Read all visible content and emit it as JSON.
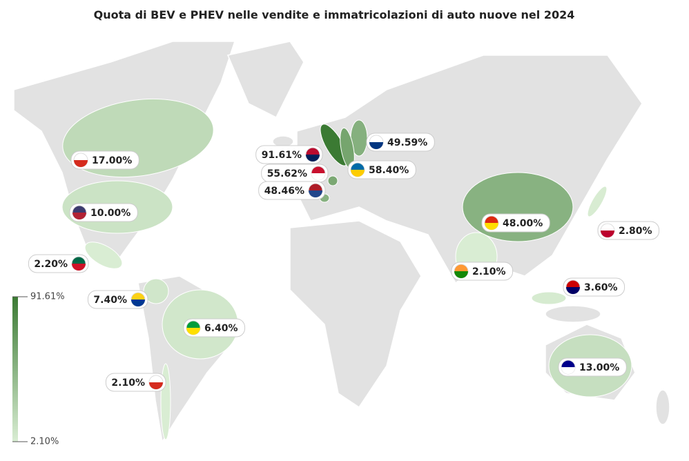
{
  "chart_data": {
    "type": "choropleth",
    "title": "Quota di BEV e PHEV nelle vendite e immatricolazioni di auto nuove nel 2024",
    "values": [
      91.61,
      55.62,
      48.46,
      49.59,
      58.4,
      17.0,
      10.0,
      2.2,
      7.4,
      6.4,
      2.1,
      48.0,
      2.8,
      2.1,
      3.6,
      13.0
    ],
    "value_labels": [
      "91.61%",
      "55.62%",
      "48.46%",
      "49.59%",
      "58.40%",
      "17.00%",
      "10.00%",
      "2.20%",
      "7.40%",
      "6.40%",
      "2.10%",
      "48.00%",
      "2.80%",
      "2.10%",
      "3.60%",
      "13.00%"
    ],
    "colorbar_ticks": [
      {
        "value": 91.61,
        "label": "91.61%"
      },
      {
        "value": 2.1,
        "label": "2.10%"
      }
    ],
    "colors": [
      "#d9edd3",
      "#3b7a33"
    ]
  }
}
